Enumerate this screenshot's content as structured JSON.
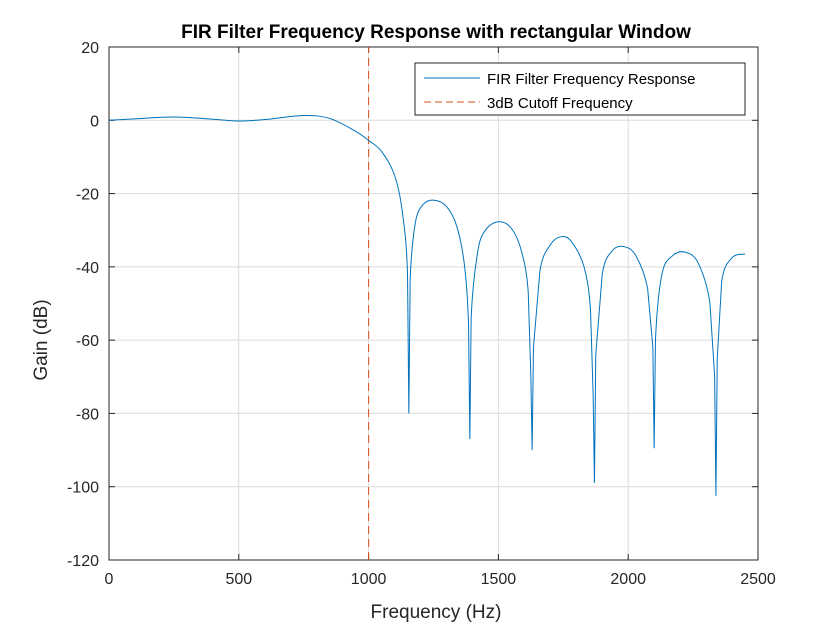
{
  "chart_data": {
    "type": "line",
    "title": "FIR Filter Frequency Response with rectangular Window",
    "xlabel": "Frequency (Hz)",
    "ylabel": "Gain (dB)",
    "xlim": [
      0,
      2500
    ],
    "ylim": [
      -120,
      20
    ],
    "xticks": [
      0,
      500,
      1000,
      1500,
      2000,
      2500
    ],
    "yticks": [
      20,
      0,
      -20,
      -40,
      -60,
      -80,
      -100,
      -120
    ],
    "grid": true,
    "legend_position": "top-right",
    "series": [
      {
        "name": "FIR Filter Frequency Response",
        "color": "#0072BD",
        "style": "solid",
        "x": [
          0,
          100,
          250,
          400,
          500,
          600,
          750,
          850,
          950,
          1000,
          1050,
          1100,
          1130,
          1150,
          1155,
          1160,
          1180,
          1210,
          1250,
          1300,
          1340,
          1370,
          1385,
          1390,
          1395,
          1420,
          1450,
          1500,
          1550,
          1590,
          1615,
          1625,
          1630,
          1635,
          1660,
          1700,
          1740,
          1780,
          1830,
          1855,
          1865,
          1870,
          1875,
          1900,
          1940,
          1985,
          2030,
          2075,
          2095,
          2100,
          2105,
          2130,
          2170,
          2220,
          2270,
          2315,
          2333,
          2338,
          2343,
          2360,
          2400,
          2450
        ],
        "values": [
          0,
          0.4,
          0.9,
          0.3,
          -0.2,
          0.2,
          1.3,
          0.5,
          -3.0,
          -5.5,
          -8.5,
          -15.0,
          -25.0,
          -42.0,
          -80.0,
          -44.0,
          -28.0,
          -23.0,
          -21.8,
          -23.5,
          -29.0,
          -40.0,
          -56.0,
          -87.0,
          -54.0,
          -36.0,
          -30.0,
          -27.7,
          -29.5,
          -36.0,
          -47.0,
          -70.0,
          -90.0,
          -62.0,
          -41.0,
          -34.0,
          -31.8,
          -33.0,
          -40.0,
          -52.0,
          -75.0,
          -99.0,
          -64.0,
          -42.0,
          -35.5,
          -34.5,
          -37.0,
          -46.0,
          -62.0,
          -89.5,
          -60.0,
          -42.0,
          -37.0,
          -36.0,
          -39.0,
          -50.0,
          -70.0,
          -102.5,
          -65.0,
          -44.0,
          -37.5,
          -36.5
        ]
      },
      {
        "name": "3dB Cutoff Frequency",
        "color": "#D95319",
        "style": "dashed",
        "x": [
          1000,
          1000
        ],
        "values": [
          -120,
          20
        ]
      }
    ]
  }
}
